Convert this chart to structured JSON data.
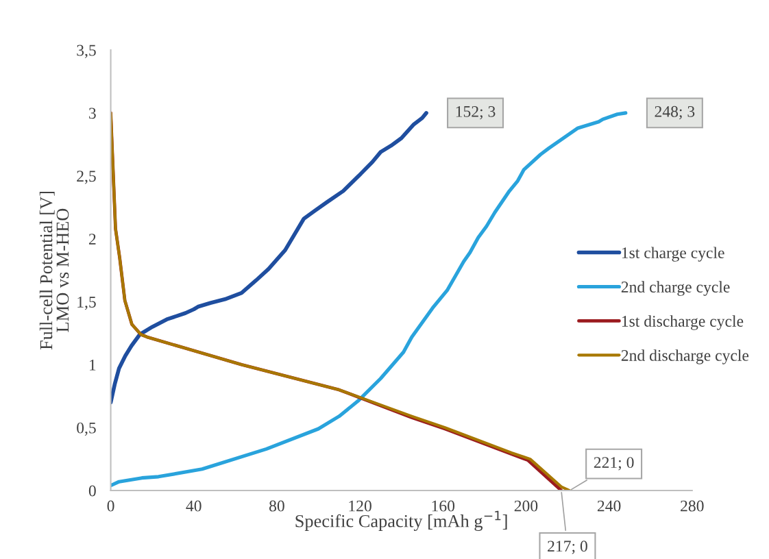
{
  "chart_data": {
    "type": "line",
    "xlabel": "Specific Capacity [mAh g$^{−1}$]",
    "ylabel": "Full-cell Potential [V]\nLMO vs M-HEO",
    "xlim": [
      0,
      280
    ],
    "xticks": [
      0,
      40,
      80,
      120,
      160,
      200,
      240,
      280
    ],
    "ylim": [
      0,
      3.5
    ],
    "yticks": [
      0,
      {
        "value": 0.5,
        "label": "0,5"
      },
      1,
      {
        "value": 1.5,
        "label": "1,5"
      },
      2,
      {
        "value": 2.5,
        "label": "2,5"
      },
      3,
      {
        "value": 3.5,
        "label": "3,5"
      }
    ],
    "grid": false,
    "legend": "right",
    "marker": "none",
    "line_style": "solid",
    "series": [
      {
        "name": "1st charge cycle",
        "color": "#1f4e9f",
        "x": [
          0,
          2,
          4,
          7,
          10,
          14,
          20,
          27,
          36,
          40,
          42,
          48,
          55,
          63,
          70,
          76,
          84,
          93,
          98,
          104,
          112,
          120,
          126,
          130,
          135,
          140,
          146,
          150,
          152
        ],
        "values": [
          0.7,
          0.85,
          0.97,
          1.07,
          1.15,
          1.24,
          1.3,
          1.36,
          1.41,
          1.44,
          1.46,
          1.49,
          1.52,
          1.57,
          1.67,
          1.76,
          1.91,
          2.16,
          2.22,
          2.29,
          2.38,
          2.51,
          2.61,
          2.69,
          2.74,
          2.8,
          2.91,
          2.96,
          3
        ]
      },
      {
        "name": "2nd charge cycle",
        "color": "#29a3dc",
        "x": [
          0,
          4,
          15,
          23,
          44,
          75,
          100,
          110,
          119,
          130,
          141,
          145,
          155,
          162,
          170,
          173,
          177,
          181,
          185,
          192,
          196,
          199,
          207,
          211,
          225,
          235,
          237,
          244,
          248
        ],
        "values": [
          0.04,
          0.07,
          0.1,
          0.11,
          0.17,
          0.33,
          0.49,
          0.59,
          0.71,
          0.89,
          1.1,
          1.22,
          1.45,
          1.59,
          1.82,
          1.89,
          2.01,
          2.1,
          2.21,
          2.38,
          2.46,
          2.55,
          2.67,
          2.72,
          2.88,
          2.93,
          2.95,
          2.99,
          3
        ]
      },
      {
        "name": "1st discharge cycle",
        "color": "#9b1b1f",
        "x": [
          0,
          1,
          2.3,
          4.3,
          6.8,
          10.2,
          14.5,
          17.5,
          63,
          110,
          145,
          161,
          193,
          201,
          217
        ],
        "values": [
          3,
          2.6,
          2.08,
          1.85,
          1.51,
          1.32,
          1.24,
          1.22,
          1.0,
          0.8,
          0.58,
          0.49,
          0.29,
          0.24,
          0
        ]
      },
      {
        "name": "2nd discharge cycle",
        "color": "#a87800",
        "x": [
          0,
          1,
          2.3,
          4.3,
          6.8,
          10.2,
          14.5,
          17.5,
          63,
          110,
          145,
          161,
          193,
          202,
          217,
          221
        ],
        "values": [
          3,
          2.6,
          2.08,
          1.85,
          1.51,
          1.32,
          1.24,
          1.22,
          1.0,
          0.8,
          0.59,
          0.5,
          0.3,
          0.25,
          0.03,
          0
        ]
      }
    ],
    "annotations": [
      {
        "text": "152; 3",
        "x": 152,
        "y": 3
      },
      {
        "text": "248; 3",
        "x": 248,
        "y": 3
      },
      {
        "text": "221; 0",
        "x": 221,
        "y": 0
      },
      {
        "text": "217; 0",
        "x": 217,
        "y": 0
      }
    ]
  }
}
